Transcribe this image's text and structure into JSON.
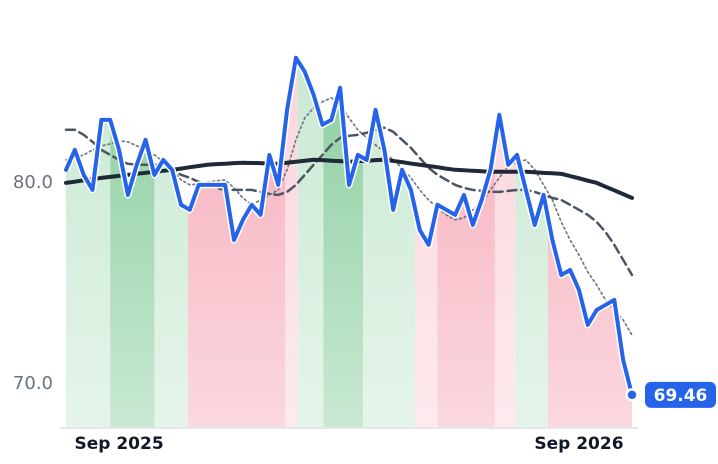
{
  "chart_data": {
    "type": "line",
    "categories": [
      null,
      null,
      null,
      null,
      null,
      null,
      "Sep 2025",
      null,
      null,
      null,
      null,
      null,
      null,
      null,
      null,
      null,
      null,
      null,
      null,
      null,
      null,
      null,
      null,
      null,
      null,
      null,
      null,
      null,
      null,
      null,
      null,
      null,
      null,
      null,
      null,
      null,
      null,
      null,
      null,
      null,
      null,
      null,
      null,
      null,
      null,
      null,
      null,
      null,
      null,
      null,
      null,
      null,
      null,
      null,
      null,
      null,
      null,
      null,
      "Sep 2026",
      null,
      null,
      null,
      null,
      null,
      null
    ],
    "series": [
      {
        "color": "#2563eb",
        "style": "solid",
        "width": 4,
        "values": [
          80.65,
          81.64,
          80.4,
          79.65,
          83.13,
          83.13,
          81.64,
          79.4,
          80.9,
          82.14,
          80.4,
          81.14,
          80.65,
          78.91,
          78.66,
          79.9,
          79.9,
          79.9,
          79.9,
          77.16,
          78.16,
          78.91,
          78.41,
          81.39,
          79.9,
          83.63,
          86.22,
          85.52,
          84.38,
          82.89,
          83.13,
          84.73,
          79.9,
          81.39,
          81.14,
          83.63,
          81.64,
          78.66,
          80.65,
          79.65,
          77.66,
          76.92,
          78.91,
          78.66,
          78.41,
          79.4,
          77.91,
          79.15,
          80.65,
          83.38,
          80.9,
          81.39,
          79.65,
          77.91,
          79.4,
          77.16,
          75.42,
          75.67,
          74.68,
          72.94,
          73.68,
          73.93,
          74.18,
          71.19,
          69.46
        ]
      },
      {
        "color": "#1f2937",
        "style": "solid",
        "width": 4,
        "values": [
          80.0,
          80.06,
          80.13,
          80.19,
          80.25,
          80.3,
          80.35,
          80.4,
          80.45,
          80.5,
          80.55,
          80.6,
          80.65,
          80.71,
          80.78,
          80.84,
          80.9,
          80.93,
          80.95,
          80.98,
          81.0,
          80.99,
          80.98,
          80.96,
          80.95,
          81.0,
          81.05,
          81.1,
          81.15,
          81.13,
          81.1,
          81.08,
          81.05,
          81.08,
          81.1,
          81.13,
          81.15,
          81.09,
          81.03,
          80.96,
          80.9,
          80.84,
          80.78,
          80.71,
          80.65,
          80.63,
          80.6,
          80.58,
          80.55,
          80.55,
          80.55,
          80.55,
          80.55,
          80.53,
          80.5,
          80.48,
          80.45,
          80.34,
          80.23,
          80.11,
          80.0,
          79.81,
          79.63,
          79.44,
          79.25
        ]
      },
      {
        "color": "#4b5563",
        "style": "dashed",
        "width": 2.5,
        "values": [
          82.64,
          82.64,
          82.39,
          82.04,
          81.64,
          81.39,
          81.14,
          80.95,
          80.9,
          80.9,
          80.9,
          80.85,
          80.65,
          80.4,
          80.25,
          80.05,
          79.9,
          79.75,
          79.65,
          79.65,
          79.65,
          79.65,
          79.55,
          79.45,
          79.4,
          79.55,
          79.9,
          80.4,
          80.9,
          81.39,
          81.89,
          82.24,
          82.34,
          82.39,
          82.49,
          82.64,
          82.74,
          82.54,
          82.14,
          81.74,
          81.24,
          80.75,
          80.4,
          80.15,
          79.9,
          79.75,
          79.65,
          79.6,
          79.55,
          79.55,
          79.6,
          79.65,
          79.65,
          79.55,
          79.4,
          79.25,
          79.15,
          78.91,
          78.66,
          78.41,
          78.06,
          77.56,
          76.92,
          76.17,
          75.42
        ]
      },
      {
        "color": "#6b7280",
        "style": "dotted",
        "width": 1.6,
        "values": [
          81.14,
          81.24,
          81.39,
          81.64,
          81.84,
          81.94,
          82.09,
          82.04,
          81.84,
          81.64,
          81.39,
          81.04,
          80.65,
          80.15,
          79.9,
          79.95,
          80.05,
          80.1,
          80.15,
          79.75,
          79.25,
          78.91,
          79.15,
          79.4,
          79.65,
          80.65,
          82.14,
          83.23,
          83.73,
          84.03,
          84.23,
          83.88,
          83.23,
          82.64,
          82.24,
          81.89,
          81.54,
          81.14,
          80.75,
          80.25,
          79.65,
          79.15,
          78.76,
          78.41,
          78.16,
          78.26,
          78.66,
          79.0,
          79.65,
          80.25,
          80.85,
          81.04,
          81.14,
          80.65,
          79.9,
          79.15,
          78.06,
          77.16,
          76.42,
          75.57,
          74.93,
          74.18,
          73.68,
          73.18,
          72.44
        ]
      }
    ],
    "regimes": [
      {
        "start": 0,
        "end": 5,
        "color": "#c6e8d0"
      },
      {
        "start": 5,
        "end": 10,
        "color": "#86cc9b"
      },
      {
        "start": 10,
        "end": 13.8,
        "color": "#c6e8d0"
      },
      {
        "start": 13.8,
        "end": 24.8,
        "color": "#f6a9b7"
      },
      {
        "start": 24.8,
        "end": 26.2,
        "color": "#fbd2da"
      },
      {
        "start": 26.2,
        "end": 29.1,
        "color": "#c6e8d0"
      },
      {
        "start": 29.1,
        "end": 33.6,
        "color": "#86cc9b"
      },
      {
        "start": 33.6,
        "end": 39.5,
        "color": "#c6e8d0"
      },
      {
        "start": 39.5,
        "end": 42,
        "color": "#fbd2da"
      },
      {
        "start": 42,
        "end": 48.5,
        "color": "#f6a9b7"
      },
      {
        "start": 48.5,
        "end": 50.8,
        "color": "#fbd2da"
      },
      {
        "start": 50.8,
        "end": 54.5,
        "color": "#c6e8d0"
      },
      {
        "start": 54.5,
        "end": 64,
        "color": "#f6a9b7"
      }
    ],
    "ylim": [
      67.86,
      88.0
    ],
    "yticks": [
      {
        "value": 70,
        "label": "70.0"
      },
      {
        "value": 80,
        "label": "80.0"
      }
    ],
    "grid": false
  }
}
